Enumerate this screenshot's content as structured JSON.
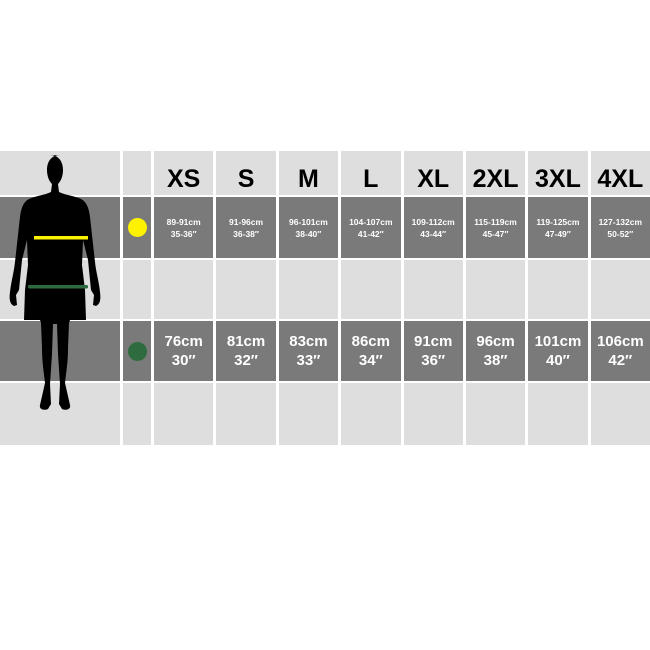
{
  "sizes": [
    "XS",
    "S",
    "M",
    "L",
    "XL",
    "2XL",
    "3XL",
    "4XL"
  ],
  "chest": {
    "indicator_color": "#fff200",
    "cm": [
      "89-91cm",
      "91-96cm",
      "96-101cm",
      "104-107cm",
      "109-112cm",
      "115-119cm",
      "119-125cm",
      "127-132cm"
    ],
    "in": [
      "35-36″",
      "36-38″",
      "38-40″",
      "41-42″",
      "43-44″",
      "45-47″",
      "47-49″",
      "50-52″"
    ]
  },
  "waist": {
    "indicator_color": "#2e6b3e",
    "cm": [
      "76cm",
      "81cm",
      "83cm",
      "86cm",
      "91cm",
      "96cm",
      "101cm",
      "106cm"
    ],
    "in": [
      "30″",
      "32″",
      "33″",
      "34″",
      "36″",
      "38″",
      "40″",
      "42″"
    ]
  },
  "figure": {
    "icon": "male-body-silhouette-icon"
  }
}
